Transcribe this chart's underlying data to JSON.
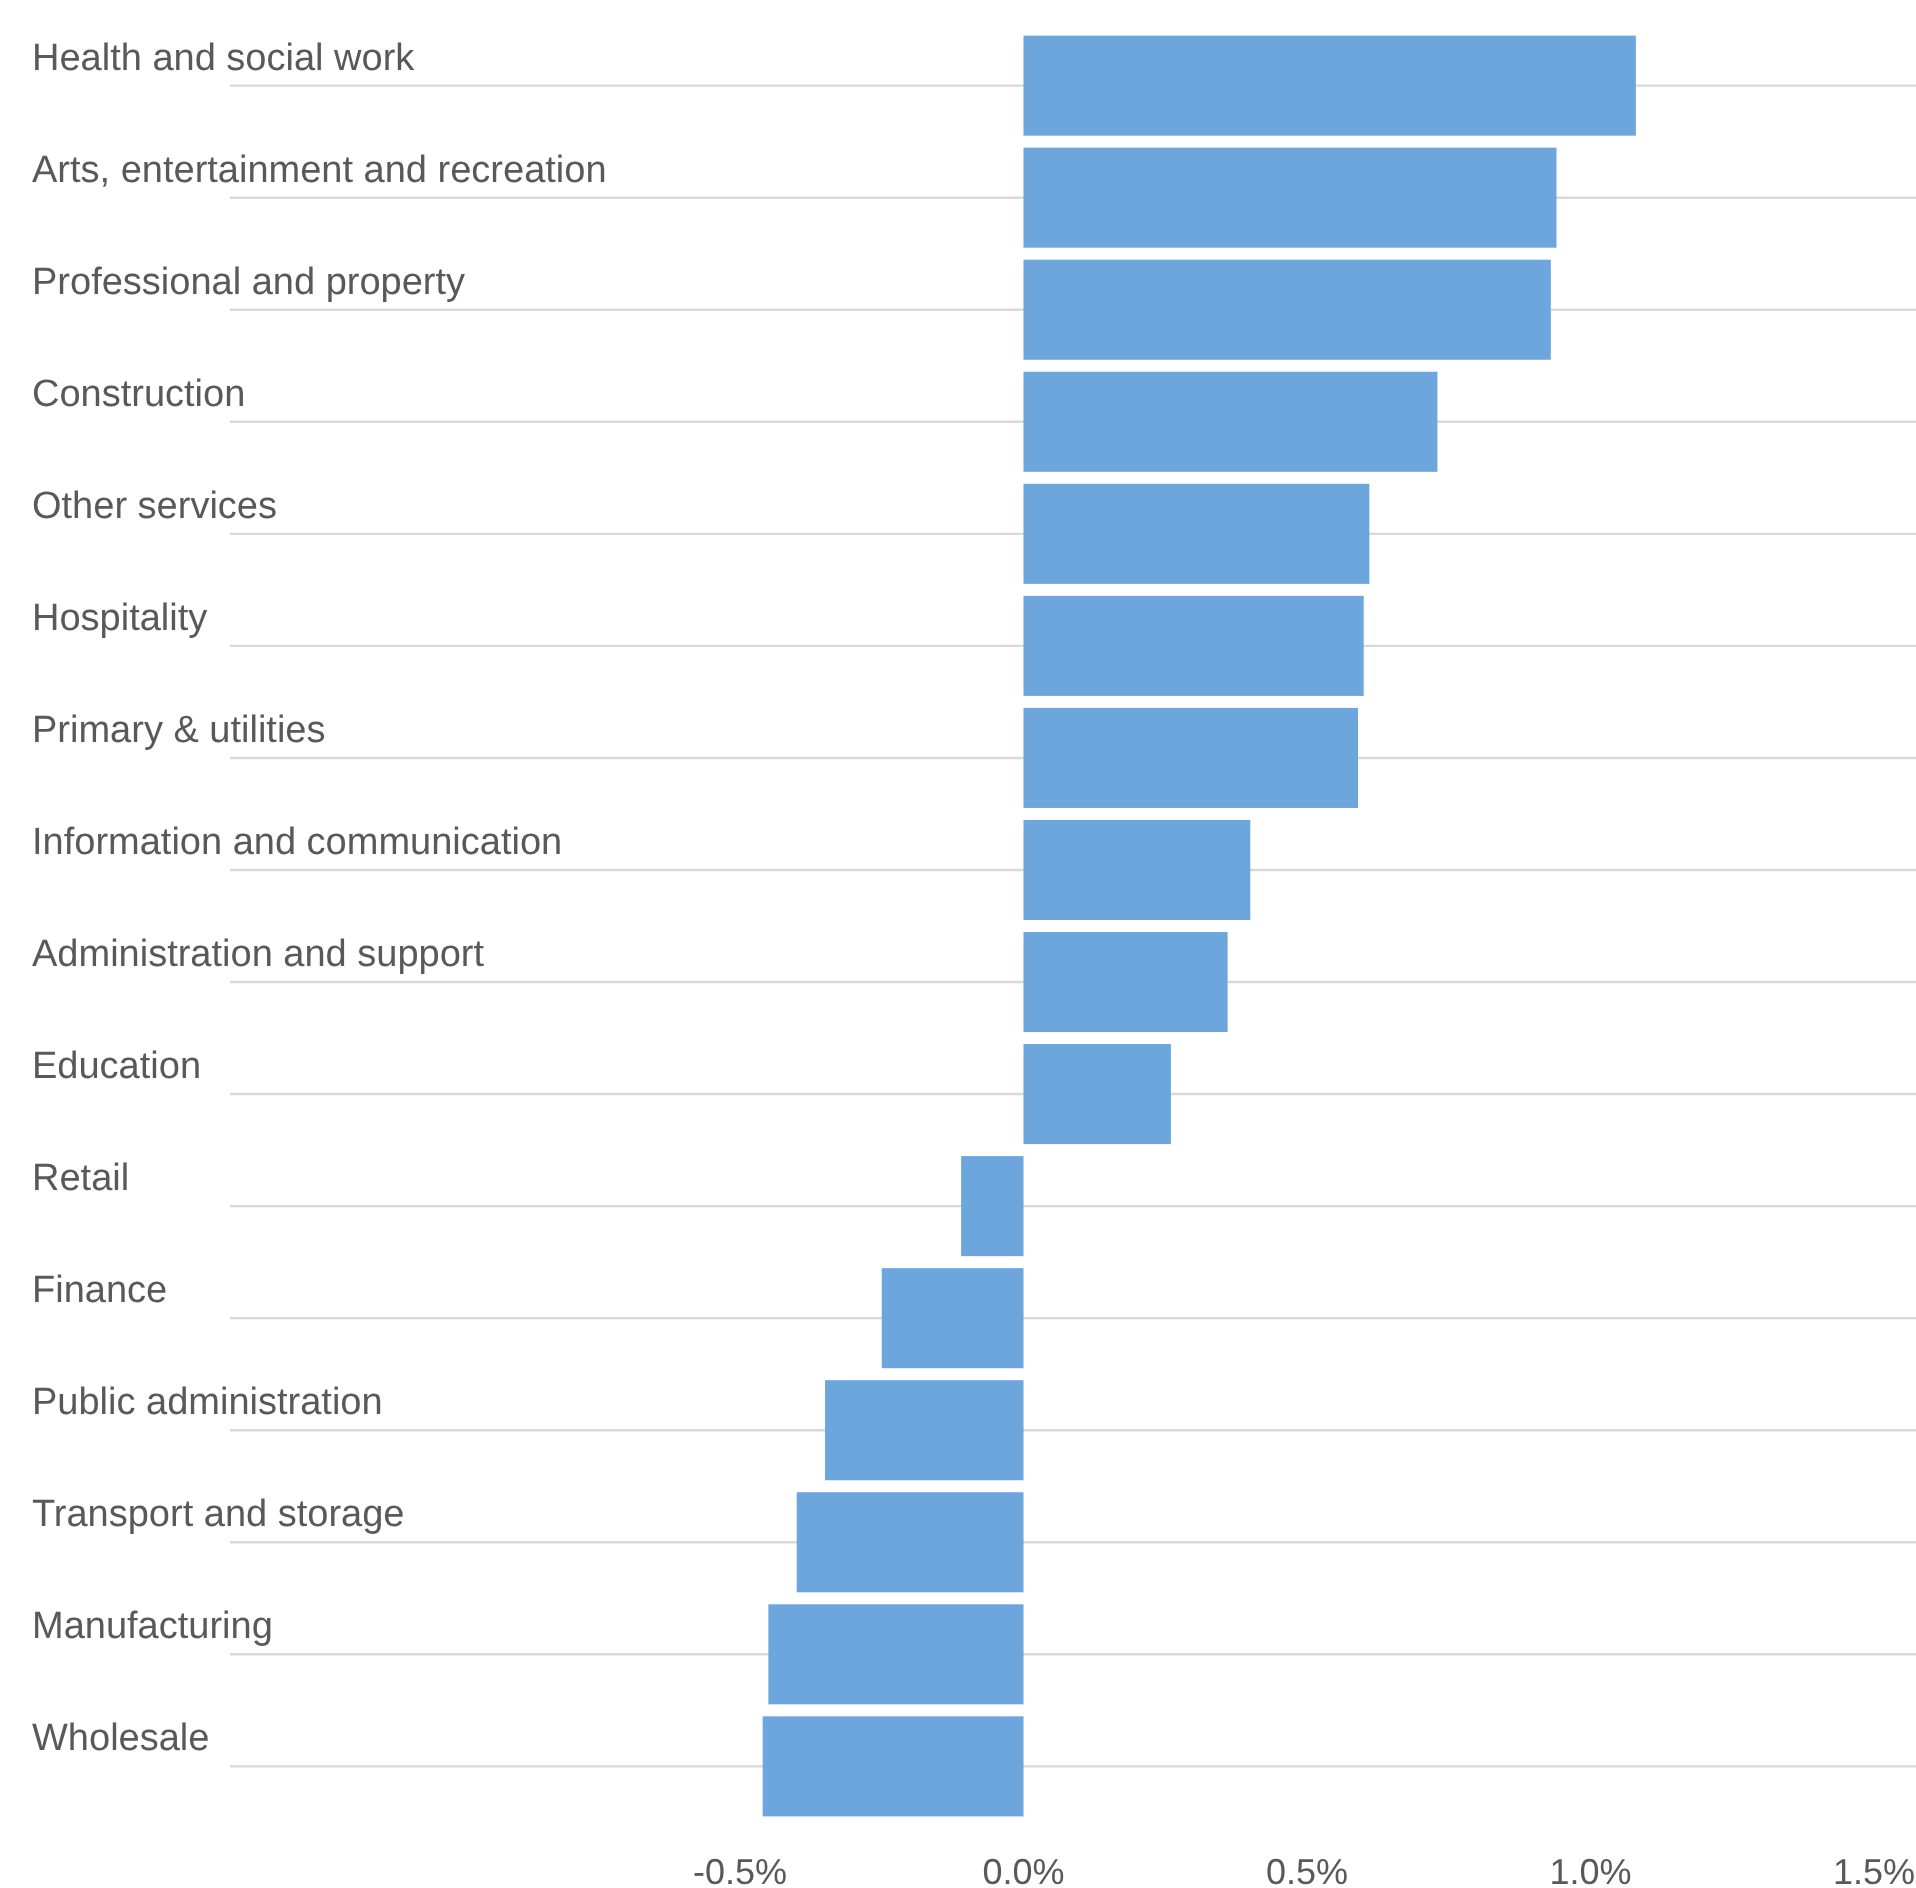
{
  "chart_data": {
    "type": "bar",
    "orientation": "horizontal",
    "categories": [
      "Health and social work",
      "Arts, entertainment and recreation",
      "Professional and property",
      "Construction",
      "Other services",
      "Hospitality",
      "Primary & utilities",
      "Information and communication",
      "Administration and support",
      "Education",
      "Retail",
      "Finance",
      "Public administration",
      "Transport and storage",
      "Manufacturing",
      "Wholesale"
    ],
    "values": [
      1.08,
      0.94,
      0.93,
      0.73,
      0.61,
      0.6,
      0.59,
      0.4,
      0.36,
      0.26,
      -0.11,
      -0.25,
      -0.35,
      -0.4,
      -0.45,
      -0.46
    ],
    "color": "#6ca6dc",
    "xlim": [
      -0.5,
      1.5
    ],
    "xticks": [
      {
        "value": -0.5,
        "label": "-0.5%"
      },
      {
        "value": 0,
        "label": "0.0%"
      },
      {
        "value": 0.5,
        "label": "0.5%"
      },
      {
        "value": 1,
        "label": "1.0%"
      },
      {
        "value": 1.5,
        "label": "1.5%"
      }
    ],
    "grid": "y"
  }
}
